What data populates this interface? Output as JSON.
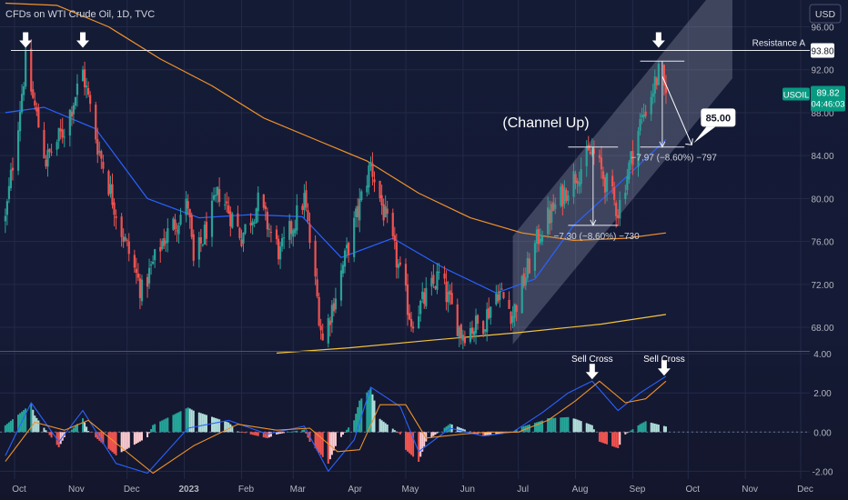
{
  "header": {
    "title": "CFDs on WTI Crude Oil, 1D, TVC",
    "currency_button": "USD"
  },
  "colors": {
    "background": "#141a33",
    "up": "#2aa198",
    "down": "#ef5350",
    "ma_blue": "#2962ff",
    "ma_orange": "#f0922b",
    "ma_yellow": "#f2c33d",
    "text": "#d1d4dc",
    "badge": "#089981"
  },
  "chart_data": [
    {
      "type": "candlestick",
      "title": "CFDs on WTI Crude Oil, 1D, TVC",
      "xlabel": "",
      "ylabel": "",
      "x_tick_labels": [
        "Oct",
        "Nov",
        "Dec",
        "2023",
        "Feb",
        "Mar",
        "Apr",
        "May",
        "Jun",
        "Jul",
        "Aug",
        "Sep",
        "Oct",
        "Nov",
        "Dec"
      ],
      "y_tick_labels": [
        "96.00",
        "92.00",
        "88.00",
        "84.00",
        "80.00",
        "76.00",
        "72.00",
        "68.00"
      ],
      "y_ticks": [
        96,
        92,
        88,
        84,
        80,
        76,
        72,
        68
      ],
      "ylim": [
        65.8,
        98.5
      ],
      "anchor_closes": [
        [
          "2022-09-26",
          78
        ],
        [
          "2022-10-07",
          92.6
        ],
        [
          "2022-10-18",
          83.5
        ],
        [
          "2022-10-28",
          86.5
        ],
        [
          "2022-11-07",
          91.8
        ],
        [
          "2022-11-15",
          85
        ],
        [
          "2022-11-28",
          77
        ],
        [
          "2022-12-09",
          71.3
        ],
        [
          "2022-12-20",
          76
        ],
        [
          "2023-01-03",
          79.5
        ],
        [
          "2023-01-06",
          73.8
        ],
        [
          "2023-01-20",
          80.6
        ],
        [
          "2023-02-01",
          76.5
        ],
        [
          "2023-02-10",
          79.6
        ],
        [
          "2023-02-22",
          74.8
        ],
        [
          "2023-03-07",
          80
        ],
        [
          "2023-03-17",
          66.7
        ],
        [
          "2023-03-31",
          75.6
        ],
        [
          "2023-04-12",
          83.2
        ],
        [
          "2023-04-26",
          74.3
        ],
        [
          "2023-05-04",
          68.6
        ],
        [
          "2023-05-19",
          72.8
        ],
        [
          "2023-05-31",
          67.5
        ],
        [
          "2023-06-12",
          68.5
        ],
        [
          "2023-06-20",
          71.5
        ],
        [
          "2023-06-28",
          69.2
        ],
        [
          "2023-07-13",
          77
        ],
        [
          "2023-07-28",
          81.2
        ],
        [
          "2023-08-10",
          84.4
        ],
        [
          "2023-08-24",
          78.9
        ],
        [
          "2023-09-05",
          87
        ],
        [
          "2023-09-15",
          91.6
        ],
        [
          "2023-09-19",
          88.8
        ]
      ],
      "last_close": 89.82,
      "series": [
        {
          "name": "",
          "color": "#2962ff",
          "points": [
            [
              "2022-09-26",
              88
            ],
            [
              "2022-10-17",
              88.5
            ],
            [
              "2022-11-14",
              86.5
            ],
            [
              "2022-12-12",
              80
            ],
            [
              "2023-01-09",
              78.2
            ],
            [
              "2023-02-06",
              78.5
            ],
            [
              "2023-03-06",
              78.3
            ],
            [
              "2023-03-27",
              74.5
            ],
            [
              "2023-04-24",
              76.3
            ],
            [
              "2023-05-22",
              73.5
            ],
            [
              "2023-06-19",
              71.2
            ],
            [
              "2023-07-10",
              72.5
            ],
            [
              "2023-07-31",
              77.5
            ],
            [
              "2023-08-21",
              80.8
            ],
            [
              "2023-09-19",
              85.5
            ]
          ]
        },
        {
          "name": "",
          "color": "#f0922b",
          "points": [
            [
              "2022-09-26",
              98.2
            ],
            [
              "2022-10-24",
              98
            ],
            [
              "2022-11-21",
              96
            ],
            [
              "2022-12-19",
              93
            ],
            [
              "2023-01-16",
              90.5
            ],
            [
              "2023-02-13",
              87.5
            ],
            [
              "2023-03-13",
              85.5
            ],
            [
              "2023-04-10",
              83.5
            ],
            [
              "2023-05-08",
              80.5
            ],
            [
              "2023-06-05",
              78.2
            ],
            [
              "2023-07-03",
              76.8
            ],
            [
              "2023-07-31",
              76.1
            ],
            [
              "2023-08-28",
              76.3
            ],
            [
              "2023-09-19",
              76.8
            ]
          ]
        },
        {
          "name": "",
          "color": "#f2c33d",
          "points": [
            [
              "2023-02-20",
              65.6
            ],
            [
              "2023-04-01",
              66.1
            ],
            [
              "2023-05-15",
              66.8
            ],
            [
              "2023-07-01",
              67.5
            ],
            [
              "2023-08-15",
              68.3
            ],
            [
              "2023-09-19",
              69.2
            ]
          ]
        }
      ],
      "resistance": {
        "label": "Resistance A",
        "value": 93.8,
        "value_label": "93.80"
      },
      "price_badge": {
        "symbol": "USOIL",
        "price": "89.82",
        "countdown": "04:46:03"
      },
      "channel_label": "(Channel Up)",
      "target": {
        "label": "85.00",
        "value": 85
      },
      "measure_1": {
        "label": "−7.30 (−8.60%) −730",
        "high": 84.8,
        "low": 77.5,
        "start": "2023-07-28",
        "end": "2023-08-24"
      },
      "measure_2": {
        "label": "−7.97 (−8.60%) −797",
        "high": 92.8,
        "low": 84.8,
        "start": "2023-09-05",
        "end": "2023-09-29"
      },
      "channel": {
        "lower": [
          [
            "2023-06-28",
            66.4
          ],
          [
            "2023-10-25",
            91.2
          ]
        ],
        "upper": [
          [
            "2023-06-28",
            76.5
          ],
          [
            "2023-10-25",
            101.5
          ]
        ]
      },
      "top_arrows": [
        "2022-10-07",
        "2022-11-07",
        "2023-09-15"
      ]
    },
    {
      "type": "macd",
      "y_tick_labels": [
        "4.00",
        "2.00",
        "0.00",
        "-2.00"
      ],
      "y_ticks": [
        4,
        2,
        0,
        -2
      ],
      "ylim": [
        -2.4,
        4.1
      ],
      "macd_line": [
        [
          "2022-09-26",
          -1.2
        ],
        [
          "2022-10-10",
          1.5
        ],
        [
          "2022-10-25",
          -0.5
        ],
        [
          "2022-11-07",
          1.1
        ],
        [
          "2022-11-25",
          -1.6
        ],
        [
          "2022-12-12",
          -2.1
        ],
        [
          "2023-01-03",
          0.2
        ],
        [
          "2023-01-25",
          0.6
        ],
        [
          "2023-02-15",
          -0.1
        ],
        [
          "2023-03-07",
          0.3
        ],
        [
          "2023-03-20",
          -2.0
        ],
        [
          "2023-04-03",
          -0.4
        ],
        [
          "2023-04-12",
          2.3
        ],
        [
          "2023-04-28",
          1.3
        ],
        [
          "2023-05-08",
          -1.0
        ],
        [
          "2023-05-25",
          0.2
        ],
        [
          "2023-06-12",
          -0.2
        ],
        [
          "2023-06-28",
          0.0
        ],
        [
          "2023-07-14",
          1.0
        ],
        [
          "2023-07-28",
          2.0
        ],
        [
          "2023-08-10",
          2.6
        ],
        [
          "2023-08-24",
          1.1
        ],
        [
          "2023-09-05",
          2.0
        ],
        [
          "2023-09-19",
          2.85
        ]
      ],
      "signal_line": [
        [
          "2022-09-26",
          -1.5
        ],
        [
          "2022-10-12",
          0.5
        ],
        [
          "2022-10-28",
          0.1
        ],
        [
          "2022-11-10",
          0.6
        ],
        [
          "2022-11-28",
          -0.8
        ],
        [
          "2022-12-15",
          -2.1
        ],
        [
          "2023-01-06",
          -0.7
        ],
        [
          "2023-01-30",
          0.4
        ],
        [
          "2023-02-20",
          0.1
        ],
        [
          "2023-03-10",
          0.2
        ],
        [
          "2023-03-25",
          -1.0
        ],
        [
          "2023-04-06",
          -0.9
        ],
        [
          "2023-04-17",
          1.4
        ],
        [
          "2023-05-01",
          1.4
        ],
        [
          "2023-05-12",
          -0.3
        ],
        [
          "2023-06-01",
          -0.1
        ],
        [
          "2023-06-15",
          0.0
        ],
        [
          "2023-07-01",
          0.0
        ],
        [
          "2023-07-17",
          0.6
        ],
        [
          "2023-08-01",
          1.6
        ],
        [
          "2023-08-14",
          2.6
        ],
        [
          "2023-08-28",
          1.5
        ],
        [
          "2023-09-08",
          1.7
        ],
        [
          "2023-09-19",
          2.6
        ]
      ],
      "annotations": [
        {
          "label": "Sell Cross",
          "date": "2023-08-10"
        },
        {
          "label": "Sell Cross",
          "date": "2023-09-18"
        }
      ]
    }
  ]
}
